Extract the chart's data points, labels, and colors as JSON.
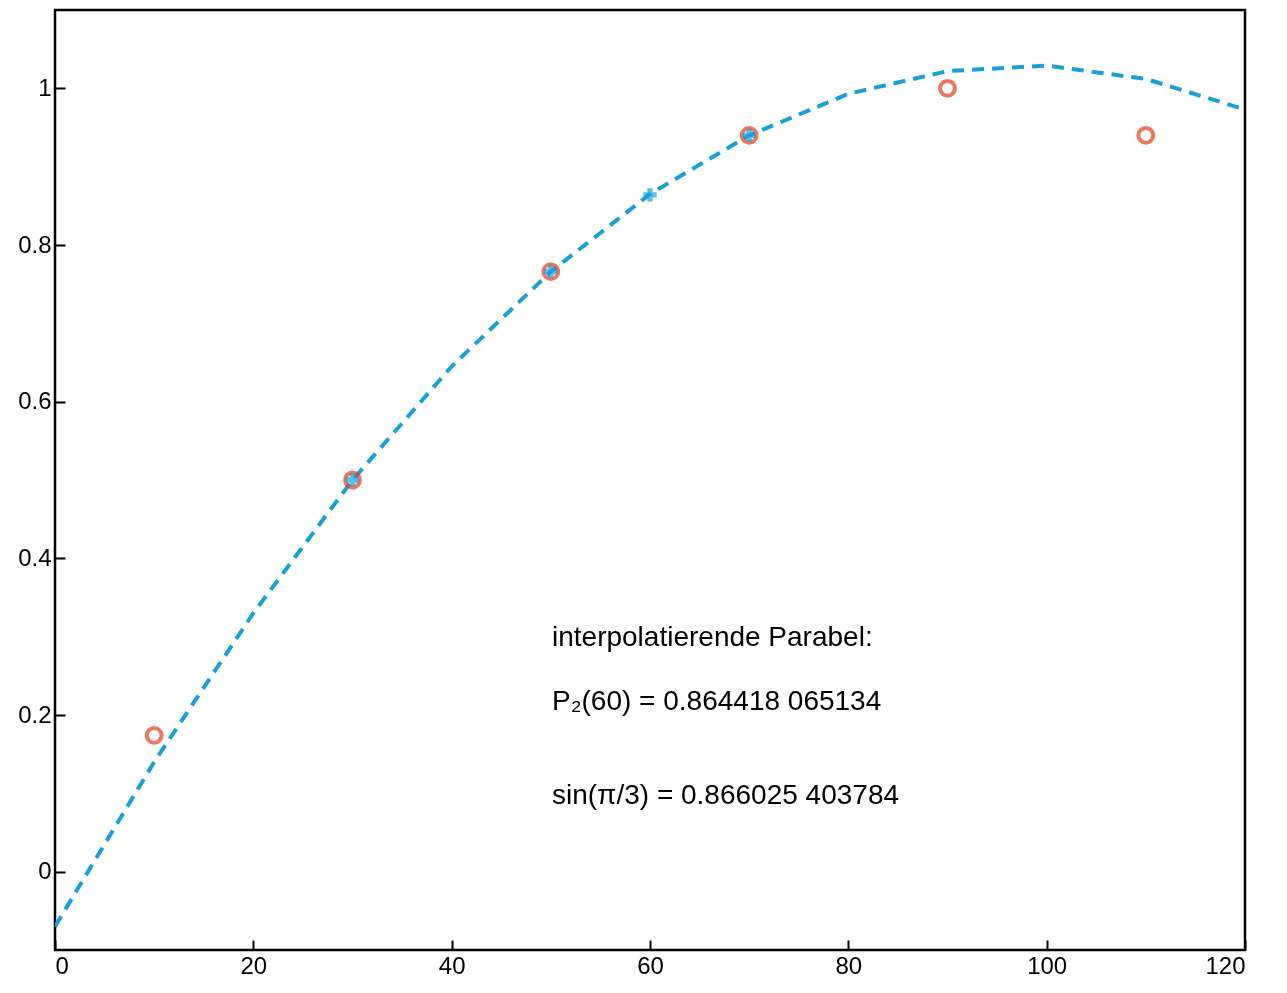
{
  "chart_data": {
    "type": "line",
    "xlim": [
      0,
      120
    ],
    "xticks": [
      0,
      20,
      40,
      60,
      80,
      100,
      120
    ],
    "ylim": [
      -0.1,
      1.1
    ],
    "yticks": [
      0,
      0.2,
      0.4,
      0.6,
      0.8,
      1
    ],
    "series": [
      {
        "color": "#1a9fd9",
        "line_style": "dashed",
        "x": [
          0,
          10,
          20,
          30,
          40,
          50,
          60,
          70,
          80,
          90,
          100,
          110,
          120
        ],
        "values": [
          -0.07,
          0.14,
          0.33,
          0.5,
          0.645,
          0.766,
          0.865,
          0.94,
          0.993,
          1.022,
          1.029,
          1.012,
          0.973
        ]
      },
      {
        "type": "scatter",
        "color": "#e8401c",
        "marker": "circle",
        "x": [
          10,
          30,
          50,
          70,
          90,
          110
        ],
        "values": [
          0.174,
          0.5,
          0.766,
          0.94,
          1.0,
          0.94
        ]
      },
      {
        "type": "scatter",
        "color": "#1a9fd9",
        "marker": "cross",
        "x": [
          30,
          50,
          60,
          70
        ],
        "values": [
          0.5,
          0.766,
          0.864,
          0.94
        ]
      }
    ],
    "annotations": [
      "interpolatierende Parabel:",
      "P₂(60) = 0.864418 065134",
      "sin(π/3) = 0.866025 403784"
    ]
  }
}
